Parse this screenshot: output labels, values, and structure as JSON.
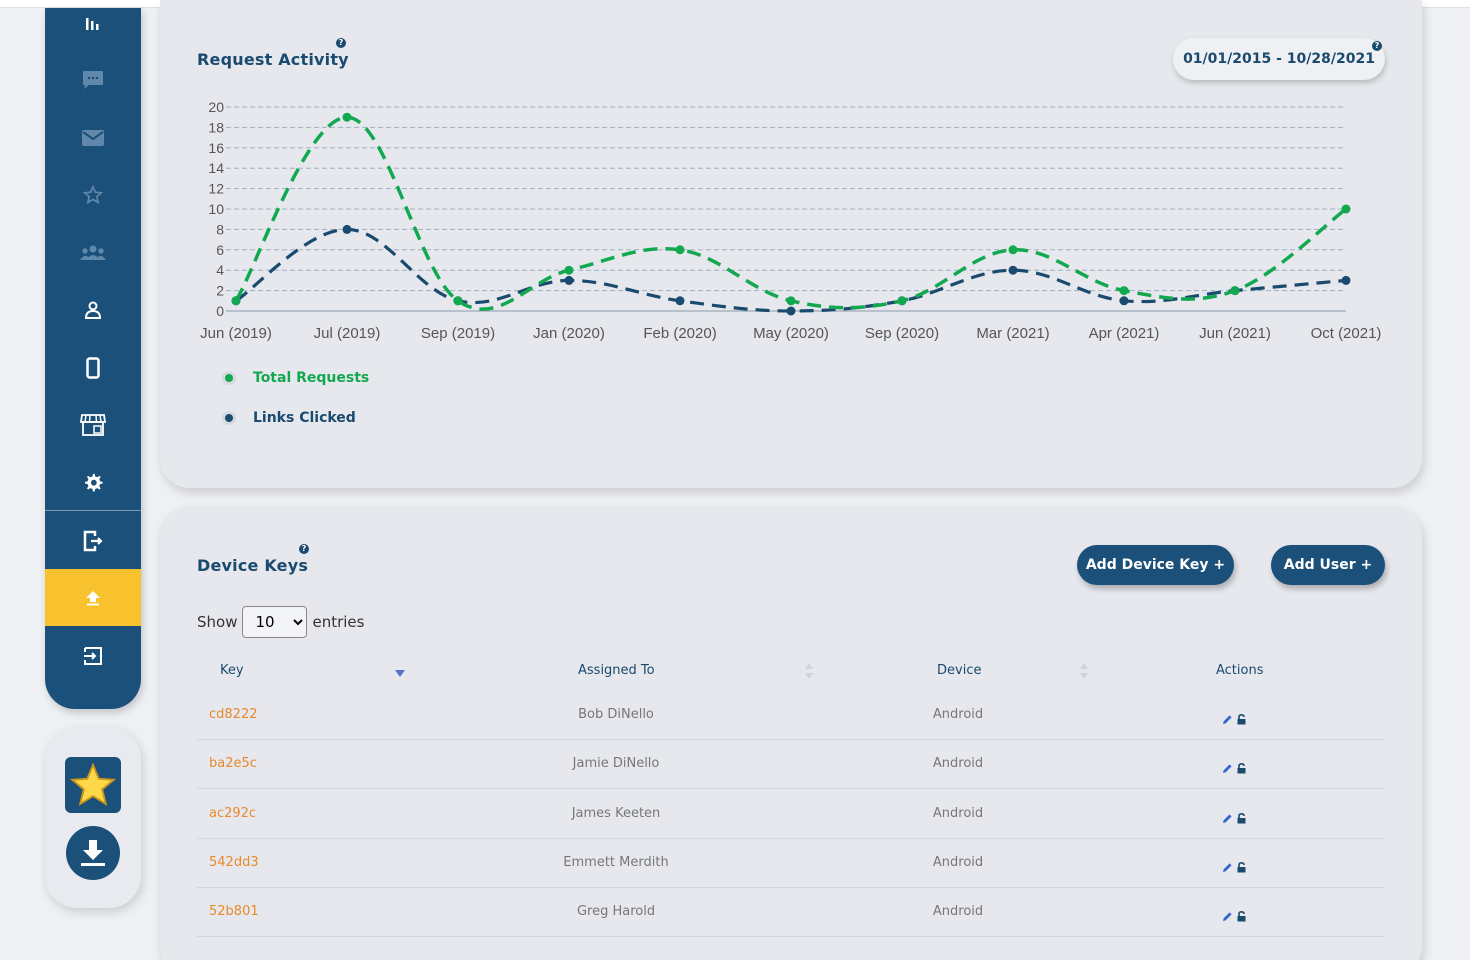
{
  "sidebar": {
    "items": [
      {
        "icon": "bar-chart-icon"
      },
      {
        "icon": "chat-icon"
      },
      {
        "icon": "mail-icon"
      },
      {
        "icon": "star-icon"
      },
      {
        "icon": "users-icon"
      },
      {
        "icon": "user-icon"
      },
      {
        "icon": "mobile-icon"
      },
      {
        "icon": "store-icon"
      },
      {
        "icon": "gear-icon"
      },
      {
        "icon": "export-icon"
      },
      {
        "icon": "upload-icon",
        "active": true
      },
      {
        "icon": "login-icon"
      }
    ],
    "apps": [
      {
        "icon": "star-app-icon"
      },
      {
        "icon": "download-app-icon"
      }
    ]
  },
  "chart_card": {
    "title": "Request Activity",
    "help": "?",
    "date_range": "01/01/2015 - 10/28/2021"
  },
  "chart_data": {
    "type": "line",
    "categories": [
      "Jun (2019)",
      "Jul (2019)",
      "Sep (2019)",
      "Jan (2020)",
      "Feb (2020)",
      "May (2020)",
      "Sep (2020)",
      "Mar (2021)",
      "Apr (2021)",
      "Jun (2021)",
      "Oct (2021)"
    ],
    "series": [
      {
        "name": "Total Requests",
        "color": "#12a84f",
        "values": [
          1,
          19,
          1,
          4,
          6,
          1,
          1,
          6,
          2,
          2,
          10
        ]
      },
      {
        "name": "Links Clicked",
        "color": "#1a4a6e",
        "values": [
          1,
          8,
          1,
          3,
          1,
          0,
          1,
          4,
          1,
          2,
          3
        ]
      }
    ],
    "y_ticks": [
      "0",
      "2",
      "4",
      "6",
      "8",
      "10",
      "12",
      "14",
      "16",
      "18",
      "20"
    ],
    "ylim": [
      0,
      20
    ],
    "grid": true,
    "line_style": "dashed-smooth",
    "legend_position": "bottom-left"
  },
  "keys_card": {
    "title": "Device Keys",
    "help": "?",
    "add_device_key": "Add Device Key +",
    "add_user": "Add User +",
    "show_label": "Show",
    "entries_label": "entries",
    "page_size": "10",
    "columns": {
      "key": "Key",
      "assigned": "Assigned To",
      "device": "Device",
      "actions": "Actions"
    },
    "rows": [
      {
        "key": "cd8222",
        "assigned": "Bob DiNello",
        "device": "Android"
      },
      {
        "key": "ba2e5c",
        "assigned": "Jamie DiNello",
        "device": "Android"
      },
      {
        "key": "ac292c",
        "assigned": "James Keeten",
        "device": "Android"
      },
      {
        "key": "542dd3",
        "assigned": "Emmett Merdith",
        "device": "Android"
      },
      {
        "key": "52b801",
        "assigned": "Greg Harold",
        "device": "Android"
      }
    ]
  }
}
